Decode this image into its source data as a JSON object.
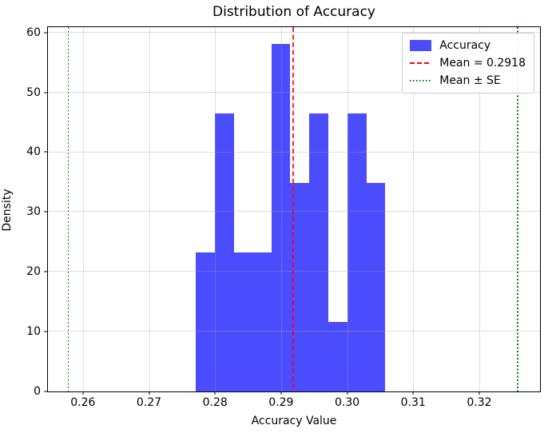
{
  "chart_data": {
    "type": "bar",
    "subtype": "histogram",
    "title": "Distribution of Accuracy",
    "xlabel": "Accuracy Value",
    "ylabel": "Density",
    "xlim": [
      0.2547,
      0.3292
    ],
    "ylim": [
      0,
      60.9
    ],
    "grid": true,
    "xticks": {
      "values": [
        0.26,
        0.27,
        0.28,
        0.29,
        0.3,
        0.31,
        0.32
      ],
      "labels": [
        "0.26",
        "0.27",
        "0.28",
        "0.29",
        "0.30",
        "0.31",
        "0.32"
      ]
    },
    "yticks": {
      "values": [
        0,
        10,
        20,
        30,
        40,
        50,
        60
      ],
      "labels": [
        "0",
        "10",
        "20",
        "30",
        "40",
        "50",
        "60"
      ]
    },
    "bin_edges": [
      0.2771,
      0.28,
      0.2829,
      0.2857,
      0.2886,
      0.2914,
      0.2943,
      0.2971,
      0.3,
      0.3029,
      0.3057
    ],
    "densities": [
      23.26,
      46.51,
      23.26,
      23.26,
      58.14,
      34.88,
      46.51,
      11.63,
      46.51,
      34.88
    ],
    "counts": [
      2,
      4,
      2,
      2,
      5,
      3,
      4,
      1,
      4,
      3
    ],
    "bar_color": "#0000ff",
    "bar_alpha": 0.7,
    "vlines": [
      {
        "x": 0.2918,
        "style": "dashed",
        "color": "#ff0000",
        "alpha": 0.85,
        "name": "mean-line"
      },
      {
        "x": 0.2578,
        "style": "dotted",
        "color": "#008000",
        "alpha": 1.0,
        "name": "mean-minus-se-line"
      },
      {
        "x": 0.3258,
        "style": "dotted",
        "color": "#008000",
        "alpha": 1.0,
        "name": "mean-plus-se-line"
      }
    ],
    "mean": 0.2918,
    "se": 0.034,
    "legend": {
      "position": "upper-right",
      "items": [
        {
          "label": "Accuracy",
          "swatch": "patch",
          "color": "#0000ff"
        },
        {
          "label": "Mean = 0.2918",
          "swatch": "dashed-line",
          "color": "#ff0000"
        },
        {
          "label": "Mean ± SE",
          "swatch": "dotted-line",
          "color": "#008000"
        }
      ]
    }
  }
}
